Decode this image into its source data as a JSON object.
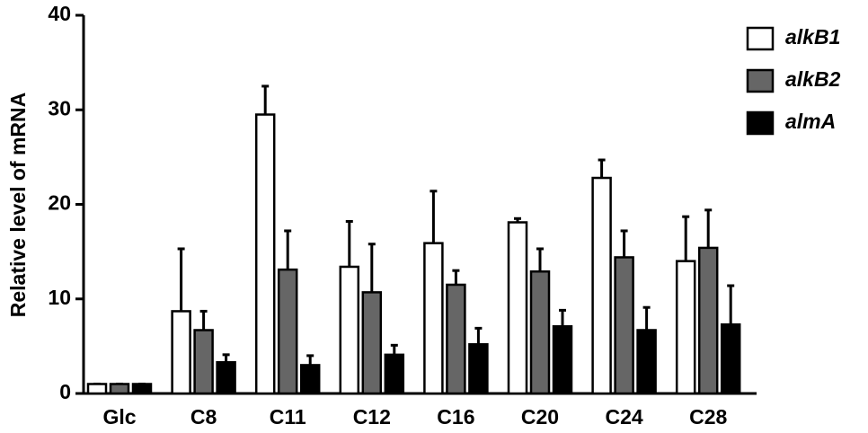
{
  "chart_data": {
    "type": "bar",
    "y_label": "Relative level of mRNA",
    "categories": [
      "Glc",
      "C8",
      "C11",
      "C12",
      "C16",
      "C20",
      "C24",
      "C28"
    ],
    "series": [
      {
        "name": "alkB1",
        "color": "#ffffff",
        "values": [
          1,
          8.7,
          29.5,
          13.4,
          15.9,
          18.1,
          22.8,
          14.0
        ],
        "errors": [
          0,
          6.6,
          3.0,
          4.8,
          5.5,
          0.4,
          1.9,
          4.7
        ]
      },
      {
        "name": "alkB2",
        "color": "#666666",
        "values": [
          1,
          6.7,
          13.1,
          10.7,
          11.5,
          12.9,
          14.4,
          15.4
        ],
        "errors": [
          0,
          2.0,
          4.1,
          5.1,
          1.5,
          2.4,
          2.8,
          4.0
        ]
      },
      {
        "name": "almA",
        "color": "#000000",
        "values": [
          1,
          3.3,
          3.0,
          4.1,
          5.2,
          7.1,
          6.7,
          7.3
        ],
        "errors": [
          0,
          0.8,
          1.0,
          1.0,
          1.7,
          1.7,
          2.4,
          4.1
        ]
      }
    ],
    "ylim": [
      0,
      40
    ],
    "yticks": [
      0,
      10,
      20,
      30,
      40
    ],
    "legend": "top-right"
  }
}
